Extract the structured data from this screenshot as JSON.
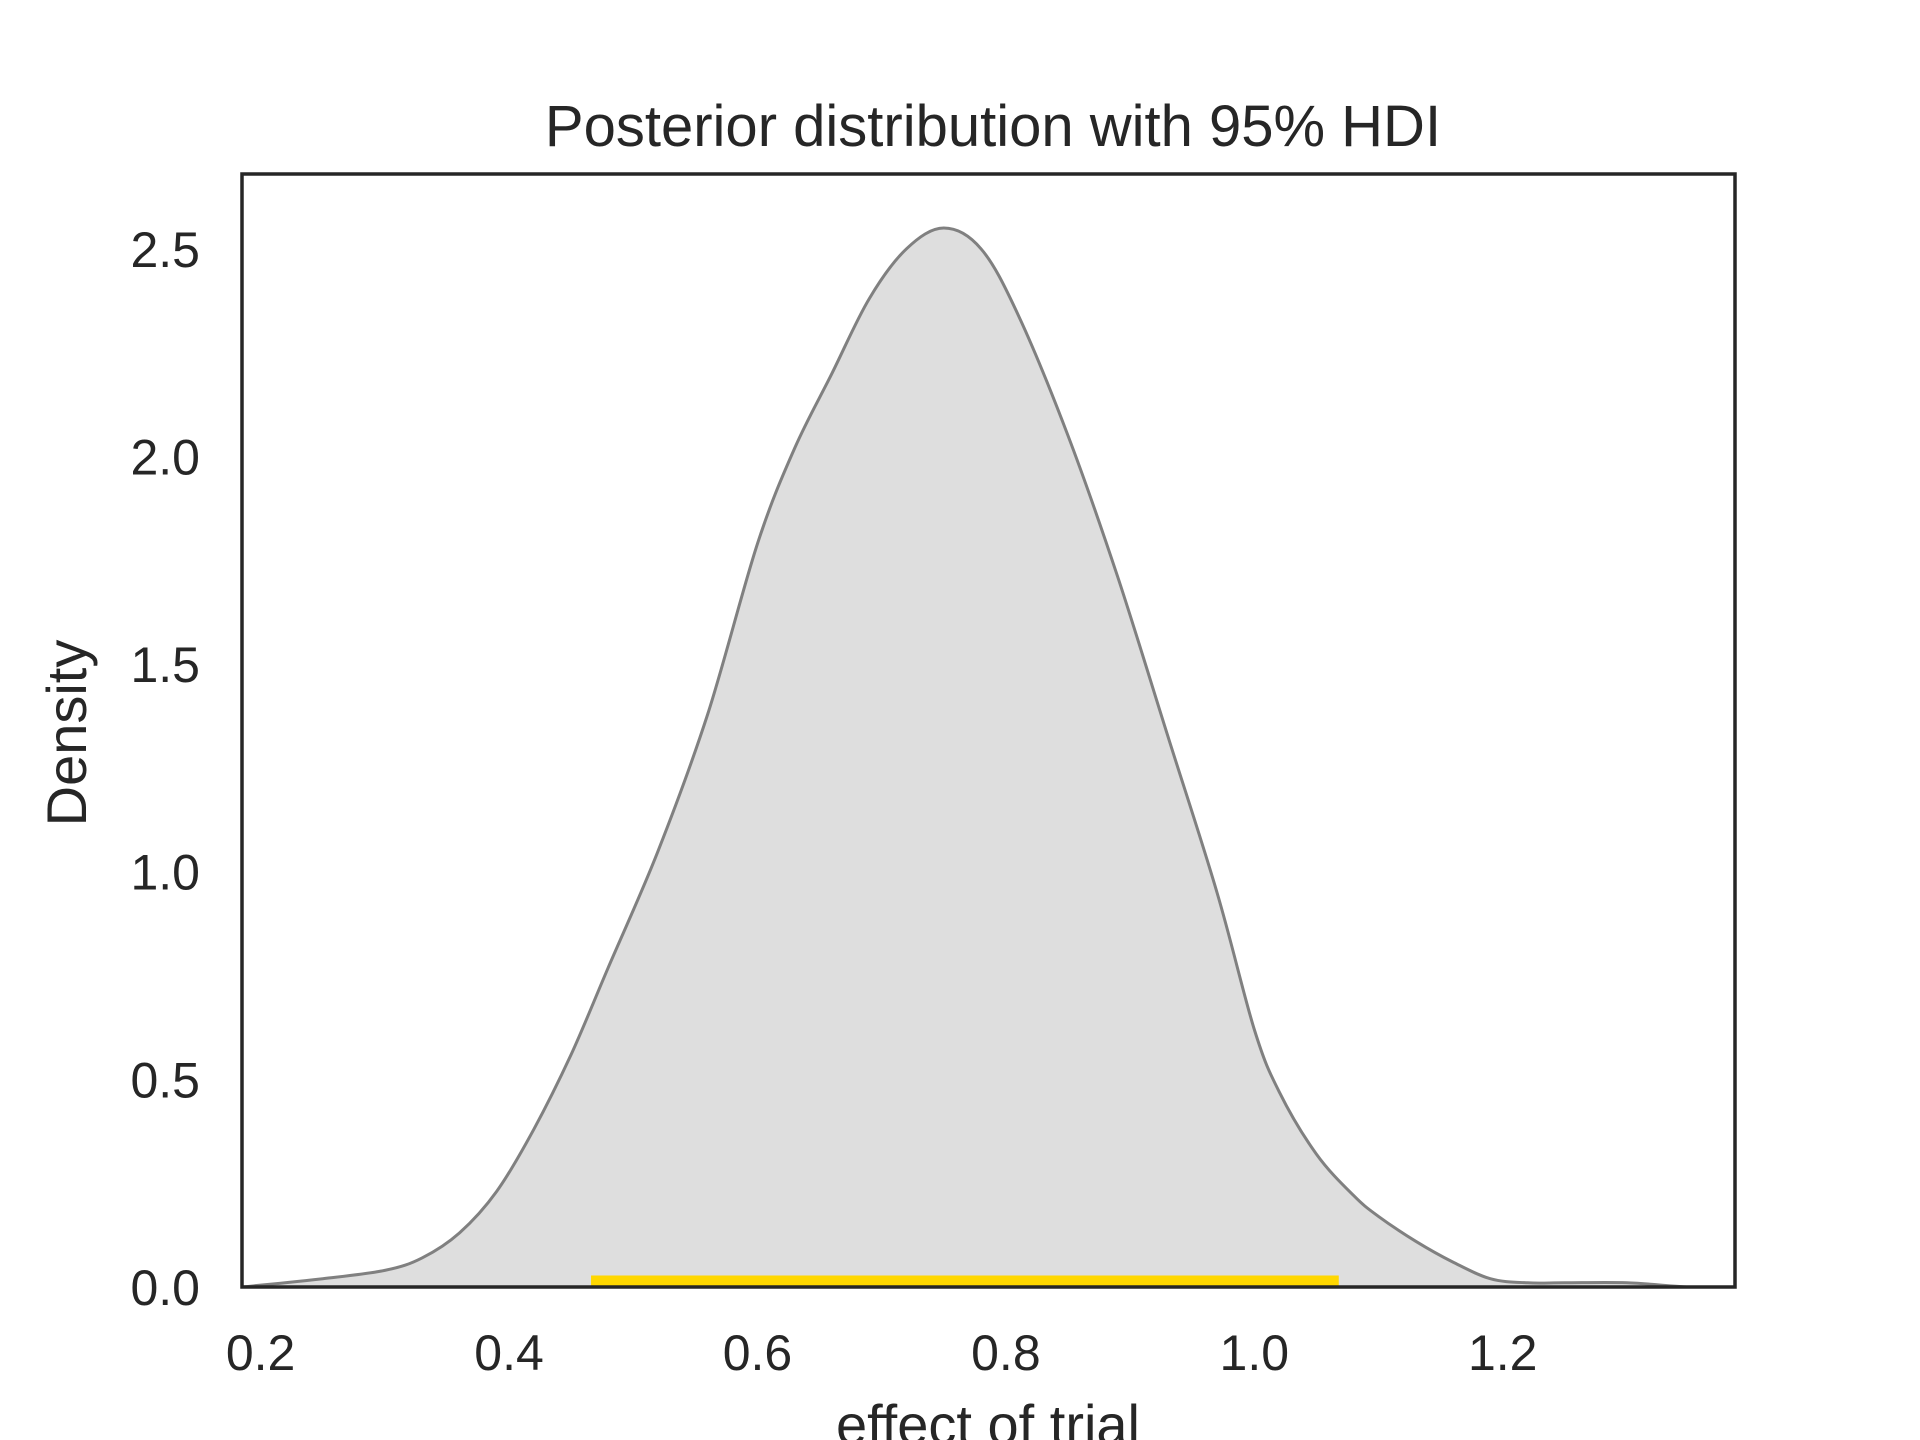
{
  "chart_data": {
    "type": "area",
    "title": "Posterior distribution with 95% HDI",
    "xlabel": "effect of trial",
    "ylabel": "Density",
    "xlim": [
      0.185,
      1.387
    ],
    "ylim": [
      0.0,
      2.68
    ],
    "xticks": [
      0.2,
      0.4,
      0.6,
      0.8,
      1.0,
      1.2
    ],
    "xtick_labels": [
      "0.2",
      "0.4",
      "0.6",
      "0.8",
      "1.0",
      "1.2"
    ],
    "yticks": [
      0.0,
      0.5,
      1.0,
      1.5,
      2.0,
      2.5
    ],
    "ytick_labels": [
      "0.0",
      "0.5",
      "1.0",
      "1.5",
      "2.0",
      "2.5"
    ],
    "grid": false,
    "series": [
      {
        "x": [
          0.185,
          0.25,
          0.3,
          0.33,
          0.36,
          0.39,
          0.42,
          0.45,
          0.48,
          0.52,
          0.56,
          0.6,
          0.63,
          0.66,
          0.69,
          0.72,
          0.75,
          0.78,
          0.81,
          0.85,
          0.89,
          0.93,
          0.97,
          1.0,
          1.02,
          1.05,
          1.08,
          1.1,
          1.13,
          1.16,
          1.19,
          1.22,
          1.25,
          1.3,
          1.35,
          1.387
        ],
        "y": [
          0.0,
          0.02,
          0.04,
          0.07,
          0.13,
          0.23,
          0.38,
          0.56,
          0.77,
          1.05,
          1.38,
          1.79,
          2.02,
          2.2,
          2.38,
          2.5,
          2.55,
          2.5,
          2.34,
          2.05,
          1.71,
          1.33,
          0.95,
          0.62,
          0.47,
          0.32,
          0.22,
          0.17,
          0.11,
          0.06,
          0.02,
          0.01,
          0.01,
          0.01,
          0.0,
          0.0
        ],
        "fill_color": "#dedede",
        "line_color": "#808080"
      }
    ],
    "hdi": {
      "level": "95%",
      "low": 0.466,
      "high": 1.068,
      "color": "#ffd700"
    },
    "frame_color": "#262626"
  }
}
